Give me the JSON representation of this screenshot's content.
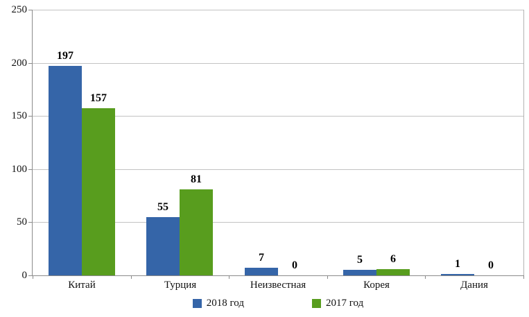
{
  "chart_data": {
    "type": "bar",
    "title": "",
    "xlabel": "",
    "ylabel": "",
    "categories": [
      "Китай",
      "Турция",
      "Неизвестная",
      "Корея",
      "Дания"
    ],
    "series": [
      {
        "name": "2018 год",
        "color": "#3565a8",
        "values": [
          197,
          55,
          7,
          5,
          1
        ]
      },
      {
        "name": "2017 год",
        "color": "#589d1e",
        "values": [
          157,
          81,
          0,
          6,
          0
        ]
      }
    ],
    "ylim": [
      0,
      250
    ],
    "yticks": [
      0,
      50,
      100,
      150,
      200,
      250
    ],
    "grid": true,
    "value_labels": true,
    "legend_position": "bottom"
  },
  "colors": {
    "background": "#ffffff",
    "gridline": "#c3c3c3",
    "axis": "#8a8a8a",
    "plot_border": "#b3b3b3",
    "text": "#000000"
  }
}
